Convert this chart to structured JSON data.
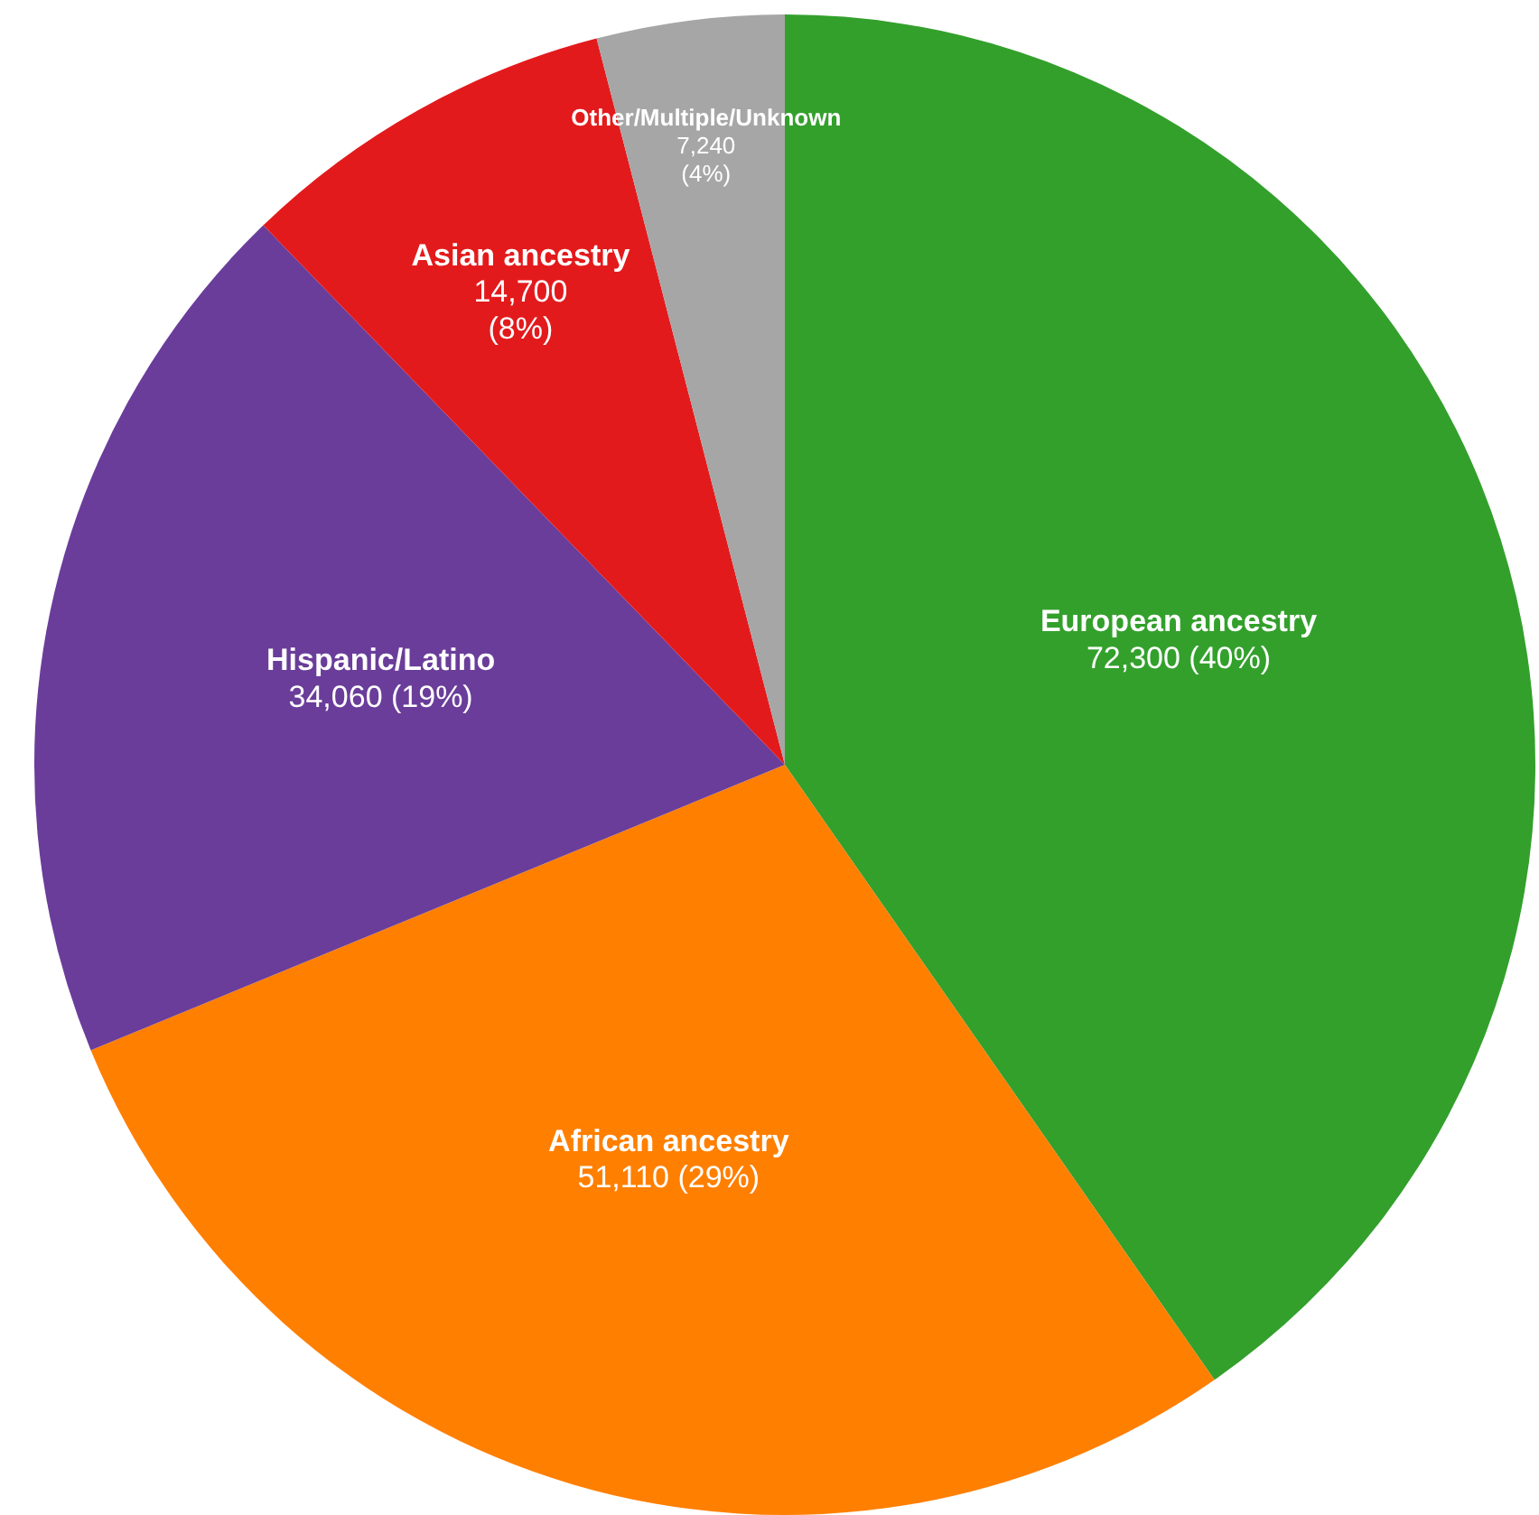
{
  "chart_data": {
    "type": "pie",
    "categories": [
      "European ancestry",
      "African ancestry",
      "Hispanic/Latino",
      "Asian ancestry",
      "Other/Multiple/Unknown"
    ],
    "values": [
      72300,
      51110,
      34060,
      14700,
      7240
    ],
    "colors": [
      "#33a02c",
      "#ff7f00",
      "#6a3d9a",
      "#e31a1c",
      "#a6a6a6"
    ],
    "value_labels": [
      "72,300 (40%)",
      "51,110 (29%)",
      "34,060 (19%)",
      "14,700 (8%)",
      "7,240 (4%)"
    ],
    "legend": false
  }
}
